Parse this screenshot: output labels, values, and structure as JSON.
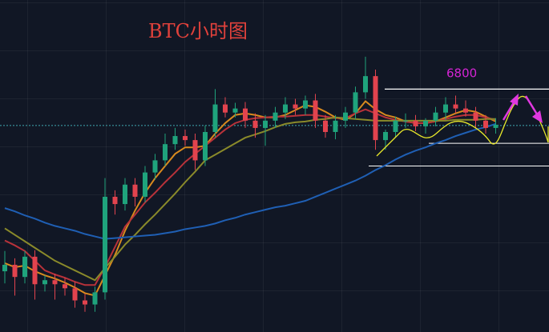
{
  "chart_data": {
    "type": "candlestick",
    "title": "BTC小时图",
    "ylim": [
      6500,
      6910
    ],
    "open": [
      6575,
      6583,
      6568,
      6593,
      6559,
      6564,
      6559,
      6554,
      6539,
      6534,
      6549,
      6667,
      6658,
      6682,
      6667,
      6697,
      6712,
      6732,
      6742,
      6737,
      6712,
      6747,
      6781,
      6771,
      6776,
      6761,
      6752,
      6761,
      6771,
      6781,
      6776,
      6786,
      6761,
      6747,
      6761,
      6771,
      6796,
      6816,
      6737,
      6747,
      6761,
      6761,
      6754,
      6761,
      6771,
      6781,
      6776,
      6771,
      6761,
      6752
    ],
    "high": [
      6600,
      6591,
      6600,
      6601,
      6570,
      6572,
      6567,
      6562,
      6547,
      6556,
      6690,
      6675,
      6690,
      6690,
      6705,
      6720,
      6745,
      6752,
      6750,
      6745,
      6755,
      6800,
      6790,
      6783,
      6784,
      6770,
      6768,
      6778,
      6790,
      6788,
      6792,
      6794,
      6768,
      6768,
      6778,
      6803,
      6840,
      6824,
      6750,
      6766,
      6770,
      6768,
      6764,
      6778,
      6790,
      6792,
      6786,
      6778,
      6768,
      6764
    ],
    "low": [
      6560,
      6545,
      6560,
      6540,
      6550,
      6540,
      6545,
      6530,
      6525,
      6525,
      6540,
      6645,
      6650,
      6655,
      6660,
      6688,
      6705,
      6725,
      6730,
      6700,
      6705,
      6740,
      6765,
      6765,
      6752,
      6740,
      6730,
      6752,
      6763,
      6768,
      6768,
      6752,
      6740,
      6738,
      6752,
      6763,
      6788,
      6725,
      6725,
      6740,
      6752,
      6748,
      6745,
      6754,
      6762,
      6770,
      6766,
      6752,
      6745,
      6745
    ],
    "close": [
      6583,
      6568,
      6593,
      6559,
      6564,
      6559,
      6554,
      6539,
      6534,
      6549,
      6667,
      6658,
      6682,
      6667,
      6697,
      6712,
      6732,
      6742,
      6737,
      6712,
      6747,
      6781,
      6771,
      6776,
      6761,
      6752,
      6761,
      6771,
      6781,
      6776,
      6786,
      6761,
      6747,
      6761,
      6771,
      6796,
      6816,
      6737,
      6747,
      6761,
      6761,
      6754,
      6761,
      6771,
      6781,
      6776,
      6771,
      6761,
      6752,
      6756
    ],
    "up_color": "#1fa37c",
    "down_color": "#e2434e",
    "moving_averages": [
      {
        "color": "#d98a1e",
        "values": [
          6585,
          6580,
          6582,
          6575,
          6570,
          6566,
          6561,
          6555,
          6548,
          6545,
          6570,
          6595,
          6625,
          6650,
          6672,
          6690,
          6705,
          6720,
          6728,
          6728,
          6730,
          6745,
          6758,
          6768,
          6770,
          6768,
          6765,
          6765,
          6768,
          6774,
          6780,
          6778,
          6772,
          6765,
          6762,
          6770,
          6785,
          6775,
          6768,
          6765,
          6760,
          6758,
          6758,
          6760,
          6765,
          6770,
          6774,
          6772,
          6766,
          6760
        ]
      },
      {
        "color": "#b8323a",
        "values": [
          6613,
          6607,
          6600,
          6588,
          6576,
          6571,
          6567,
          6562,
          6558,
          6558,
          6580,
          6605,
          6630,
          6645,
          6660,
          6672,
          6685,
          6697,
          6710,
          6720,
          6730,
          6740,
          6750,
          6758,
          6762,
          6764,
          6765,
          6766,
          6766,
          6767,
          6768,
          6768,
          6766,
          6764,
          6764,
          6770,
          6775,
          6770,
          6765,
          6762,
          6760,
          6758,
          6758,
          6760,
          6763,
          6766,
          6768,
          6768,
          6765,
          6762
        ]
      },
      {
        "color": "#8a8a2a",
        "values": [
          6628,
          6620,
          6612,
          6604,
          6596,
          6588,
          6582,
          6576,
          6570,
          6564,
          6579,
          6593,
          6608,
          6620,
          6633,
          6645,
          6658,
          6671,
          6685,
          6698,
          6712,
          6719,
          6726,
          6733,
          6740,
          6744,
          6748,
          6753,
          6757,
          6759,
          6760,
          6762,
          6763,
          6765,
          6764,
          6763,
          6762,
          6761,
          6761,
          6761,
          6761,
          6761,
          6761,
          6761,
          6761,
          6762,
          6762,
          6762,
          6763,
          6763
        ]
      },
      {
        "color": "#1f5fb4",
        "values": [
          6653,
          6649,
          6644,
          6640,
          6635,
          6631,
          6628,
          6625,
          6621,
          6618,
          6615,
          6616,
          6617,
          6618,
          6619,
          6620,
          6622,
          6624,
          6627,
          6629,
          6631,
          6634,
          6638,
          6641,
          6645,
          6648,
          6651,
          6654,
          6656,
          6659,
          6662,
          6667,
          6672,
          6677,
          6682,
          6687,
          6693,
          6700,
          6706,
          6713,
          6719,
          6724,
          6728,
          6733,
          6737,
          6742,
          6746,
          6750,
          6753,
          6757
        ]
      }
    ],
    "current_price": 6755,
    "resistance": 6800,
    "support_levels": [
      6733,
      6705
    ]
  }
}
